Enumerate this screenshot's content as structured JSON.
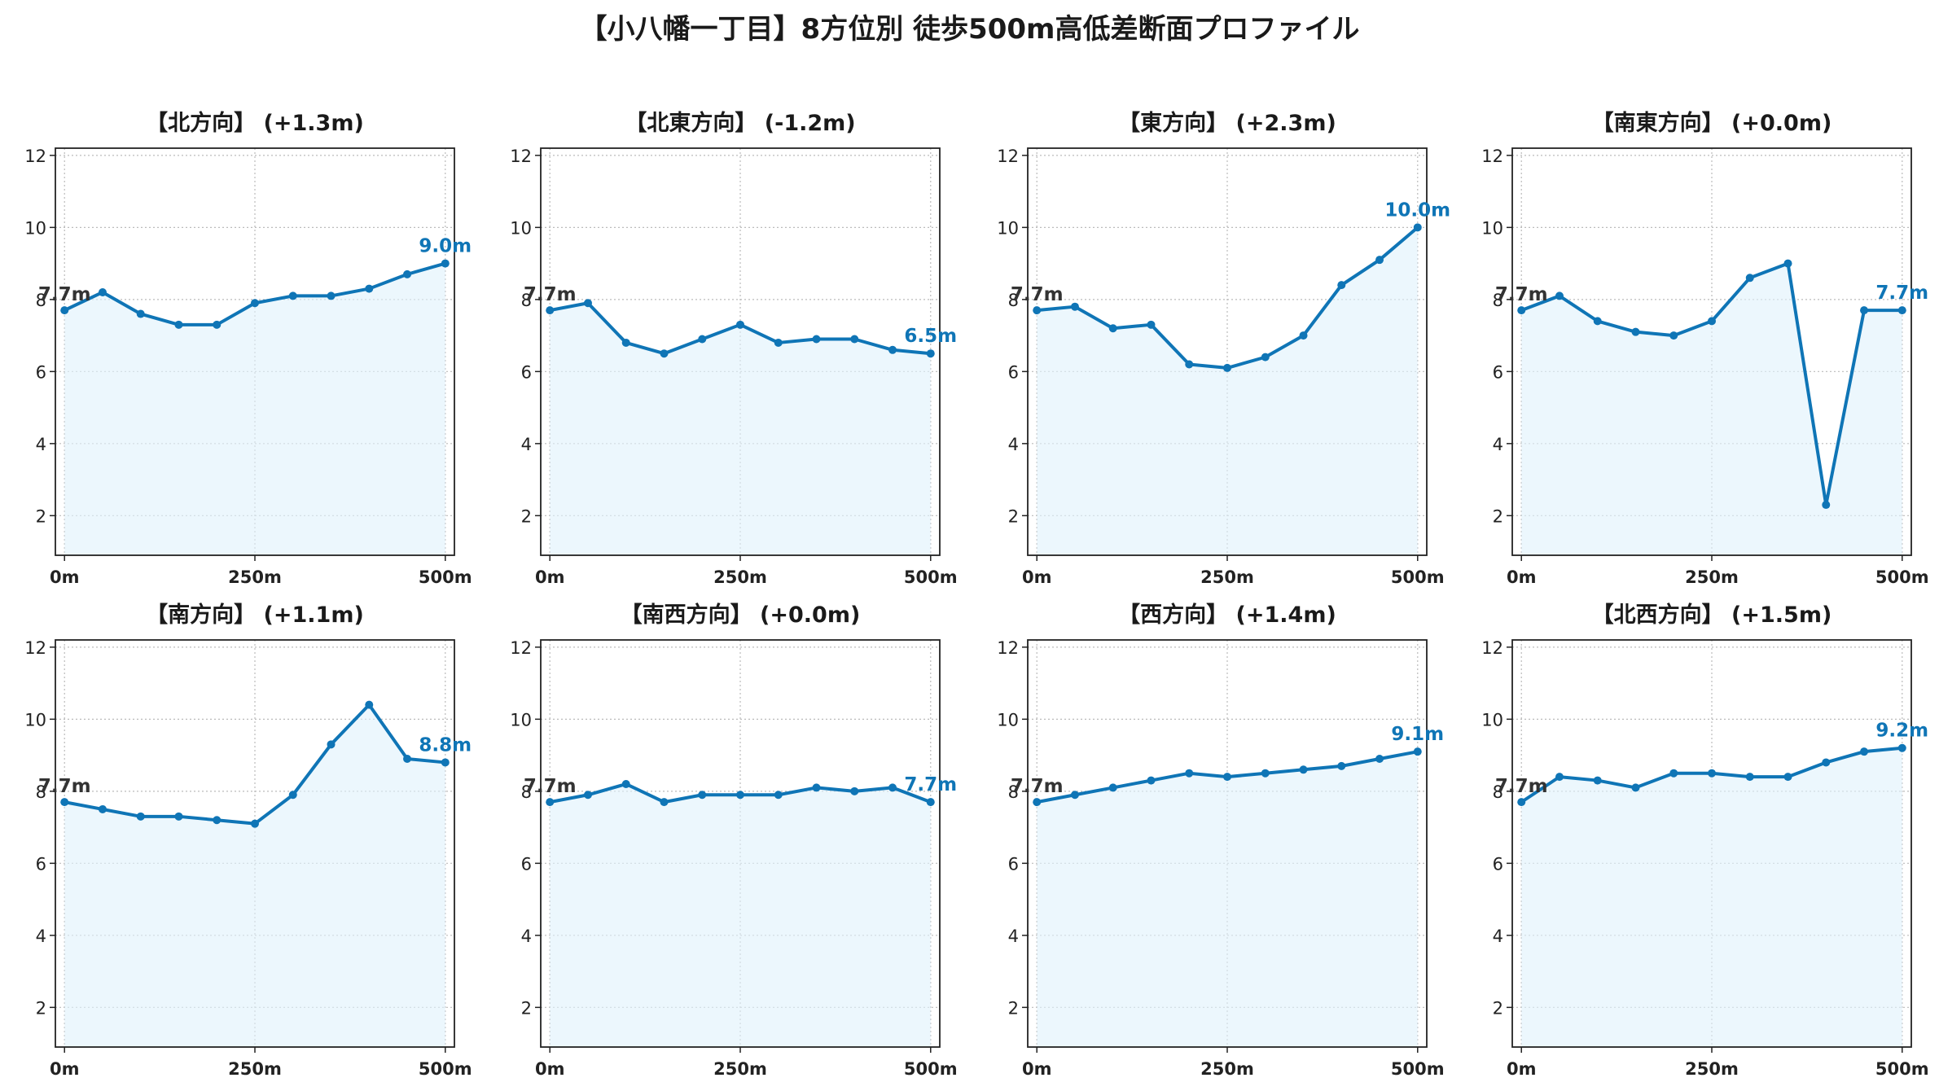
{
  "figure": {
    "title": "【小八幡一丁目】8方位別 徒歩500m高低差断面プロファイル"
  },
  "colors": {
    "line": "#0f75b6",
    "fill": "#dff2fb",
    "start_label": "#333333",
    "grid": "#bbbbbb"
  },
  "chart_data": [
    {
      "type": "area",
      "title": "【北方向】 (+1.3m)",
      "x": [
        0,
        50,
        100,
        150,
        200,
        250,
        300,
        350,
        400,
        450,
        500
      ],
      "y": [
        7.7,
        8.2,
        7.6,
        7.3,
        7.3,
        7.9,
        8.1,
        8.1,
        8.3,
        8.7,
        9.0
      ],
      "start_label": "7.7m",
      "end_label": "9.0m",
      "xticks": [
        "0m",
        "250m",
        "500m"
      ],
      "yticks": [
        "2",
        "4",
        "6",
        "8",
        "10",
        "12"
      ],
      "xlim": [
        -12,
        512
      ],
      "ylim": [
        0.9,
        12.2
      ],
      "grid": true
    },
    {
      "type": "area",
      "title": "【北東方向】 (-1.2m)",
      "x": [
        0,
        50,
        100,
        150,
        200,
        250,
        300,
        350,
        400,
        450,
        500
      ],
      "y": [
        7.7,
        7.9,
        6.8,
        6.5,
        6.9,
        7.3,
        6.8,
        6.9,
        6.9,
        6.6,
        6.5
      ],
      "start_label": "7.7m",
      "end_label": "6.5m",
      "xticks": [
        "0m",
        "250m",
        "500m"
      ],
      "yticks": [
        "2",
        "4",
        "6",
        "8",
        "10",
        "12"
      ],
      "xlim": [
        -12,
        512
      ],
      "ylim": [
        0.9,
        12.2
      ],
      "grid": true
    },
    {
      "type": "area",
      "title": "【東方向】 (+2.3m)",
      "x": [
        0,
        50,
        100,
        150,
        200,
        250,
        300,
        350,
        400,
        450,
        500
      ],
      "y": [
        7.7,
        7.8,
        7.2,
        7.3,
        6.2,
        6.1,
        6.4,
        7.0,
        8.4,
        9.1,
        10.0
      ],
      "start_label": "7.7m",
      "end_label": "10.0m",
      "xticks": [
        "0m",
        "250m",
        "500m"
      ],
      "yticks": [
        "2",
        "4",
        "6",
        "8",
        "10",
        "12"
      ],
      "xlim": [
        -12,
        512
      ],
      "ylim": [
        0.9,
        12.2
      ],
      "grid": true
    },
    {
      "type": "area",
      "title": "【南東方向】 (+0.0m)",
      "x": [
        0,
        50,
        100,
        150,
        200,
        250,
        300,
        350,
        400,
        450,
        500
      ],
      "y": [
        7.7,
        8.1,
        7.4,
        7.1,
        7.0,
        7.4,
        8.6,
        9.0,
        2.3,
        7.7,
        7.7
      ],
      "start_label": "7.7m",
      "end_label": "7.7m",
      "xticks": [
        "0m",
        "250m",
        "500m"
      ],
      "yticks": [
        "2",
        "4",
        "6",
        "8",
        "10",
        "12"
      ],
      "xlim": [
        -12,
        512
      ],
      "ylim": [
        0.9,
        12.2
      ],
      "grid": true
    },
    {
      "type": "area",
      "title": "【南方向】 (+1.1m)",
      "x": [
        0,
        50,
        100,
        150,
        200,
        250,
        300,
        350,
        400,
        450,
        500
      ],
      "y": [
        7.7,
        7.5,
        7.3,
        7.3,
        7.2,
        7.1,
        7.9,
        9.3,
        10.4,
        8.9,
        8.8
      ],
      "start_label": "7.7m",
      "end_label": "8.8m",
      "xticks": [
        "0m",
        "250m",
        "500m"
      ],
      "yticks": [
        "2",
        "4",
        "6",
        "8",
        "10",
        "12"
      ],
      "xlim": [
        -12,
        512
      ],
      "ylim": [
        0.9,
        12.2
      ],
      "grid": true
    },
    {
      "type": "area",
      "title": "【南西方向】 (+0.0m)",
      "x": [
        0,
        50,
        100,
        150,
        200,
        250,
        300,
        350,
        400,
        450,
        500
      ],
      "y": [
        7.7,
        7.9,
        8.2,
        7.7,
        7.9,
        7.9,
        7.9,
        8.1,
        8.0,
        8.1,
        7.7
      ],
      "start_label": "7.7m",
      "end_label": "7.7m",
      "xticks": [
        "0m",
        "250m",
        "500m"
      ],
      "yticks": [
        "2",
        "4",
        "6",
        "8",
        "10",
        "12"
      ],
      "xlim": [
        -12,
        512
      ],
      "ylim": [
        0.9,
        12.2
      ],
      "grid": true
    },
    {
      "type": "area",
      "title": "【西方向】 (+1.4m)",
      "x": [
        0,
        50,
        100,
        150,
        200,
        250,
        300,
        350,
        400,
        450,
        500
      ],
      "y": [
        7.7,
        7.9,
        8.1,
        8.3,
        8.5,
        8.4,
        8.5,
        8.6,
        8.7,
        8.9,
        9.1
      ],
      "start_label": "7.7m",
      "end_label": "9.1m",
      "xticks": [
        "0m",
        "250m",
        "500m"
      ],
      "yticks": [
        "2",
        "4",
        "6",
        "8",
        "10",
        "12"
      ],
      "xlim": [
        -12,
        512
      ],
      "ylim": [
        0.9,
        12.2
      ],
      "grid": true
    },
    {
      "type": "area",
      "title": "【北西方向】 (+1.5m)",
      "x": [
        0,
        50,
        100,
        150,
        200,
        250,
        300,
        350,
        400,
        450,
        500
      ],
      "y": [
        7.7,
        8.4,
        8.3,
        8.1,
        8.5,
        8.5,
        8.4,
        8.4,
        8.8,
        9.1,
        9.2
      ],
      "start_label": "7.7m",
      "end_label": "9.2m",
      "xticks": [
        "0m",
        "250m",
        "500m"
      ],
      "yticks": [
        "2",
        "4",
        "6",
        "8",
        "10",
        "12"
      ],
      "xlim": [
        -12,
        512
      ],
      "ylim": [
        0.9,
        12.2
      ],
      "grid": true
    }
  ]
}
